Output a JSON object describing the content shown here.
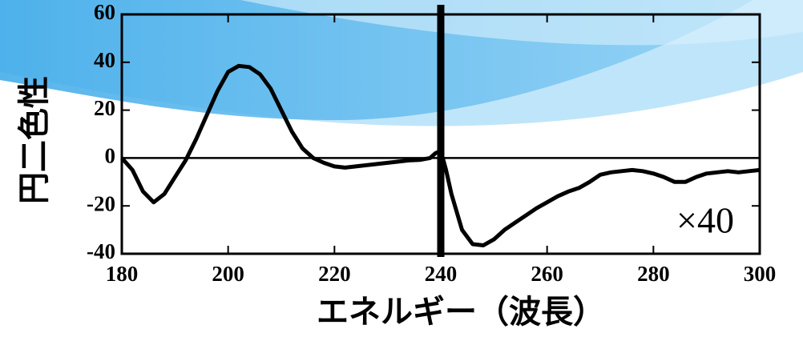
{
  "chart_data": {
    "type": "line",
    "ylabel": "円二色性",
    "xlabel": "エネルギー（波長）",
    "annotation": "×40",
    "color": "#000000",
    "x": [
      180,
      182,
      184,
      186,
      188,
      190,
      192,
      194,
      196,
      198,
      200,
      202,
      204,
      206,
      208,
      210,
      212,
      214,
      216,
      218,
      220,
      222,
      224,
      226,
      228,
      230,
      232,
      234,
      236,
      238,
      239,
      240,
      241,
      242,
      244,
      246,
      248,
      250,
      252,
      254,
      256,
      258,
      260,
      262,
      264,
      266,
      268,
      270,
      272,
      274,
      276,
      278,
      280,
      282,
      284,
      286,
      288,
      290,
      292,
      294,
      296,
      298,
      300
    ],
    "values": [
      0,
      -5,
      -14,
      -18.5,
      -15,
      -8,
      -1,
      8,
      18,
      28,
      36,
      38.5,
      38,
      35,
      29,
      20,
      11,
      4,
      0,
      -2,
      -3.5,
      -4,
      -3.5,
      -3,
      -2.5,
      -2,
      -1.5,
      -1,
      -0.8,
      0,
      2,
      3,
      -5,
      -15,
      -30,
      -36,
      -36.5,
      -34,
      -30,
      -27,
      -24,
      -21,
      -18.5,
      -16,
      -14,
      -12.5,
      -10,
      -7,
      -6,
      -5.5,
      -5,
      -5.5,
      -6.5,
      -8,
      -10,
      -10,
      -8,
      -6.5,
      -6,
      -5.5,
      -6,
      -5.5,
      -5
    ],
    "vertical_line_x": 240,
    "xlim": [
      180,
      300
    ],
    "xticks": [
      180,
      200,
      220,
      240,
      260,
      280,
      300
    ],
    "ylim": [
      -40,
      60
    ],
    "yticks": [
      -40,
      -20,
      0,
      20,
      40,
      60
    ]
  }
}
